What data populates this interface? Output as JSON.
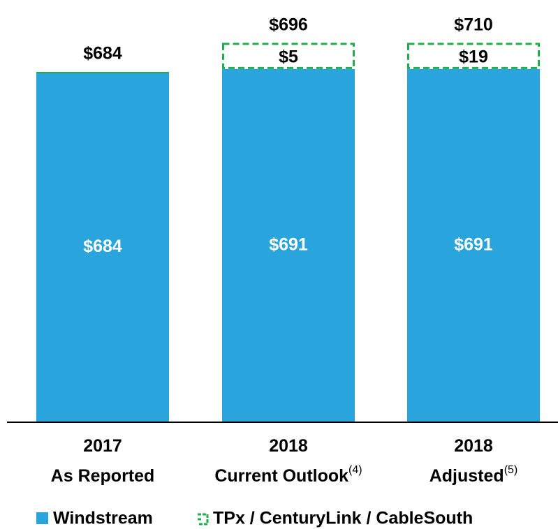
{
  "chart_data": {
    "type": "stacked_bar",
    "categories": [
      [
        "2017",
        "As Reported"
      ],
      [
        "2018",
        "Current Outlook"
      ],
      [
        "2018",
        "Adjusted"
      ]
    ],
    "footnotes": [
      null,
      "(4)",
      "(5)"
    ],
    "series": [
      {
        "name": "Windstream",
        "color": "#2aa4dc",
        "values": [
          684,
          691,
          691
        ],
        "value_labels": [
          "$684",
          "$691",
          "$691"
        ]
      },
      {
        "name": "TPx / CenturyLink / CableSouth",
        "color": "#1fae4b",
        "values": [
          0,
          5,
          19
        ],
        "value_labels": [
          null,
          "$5",
          "$19"
        ]
      }
    ],
    "totals": [
      684,
      696,
      710
    ],
    "total_labels": [
      "$684",
      "$696",
      "$710"
    ]
  }
}
